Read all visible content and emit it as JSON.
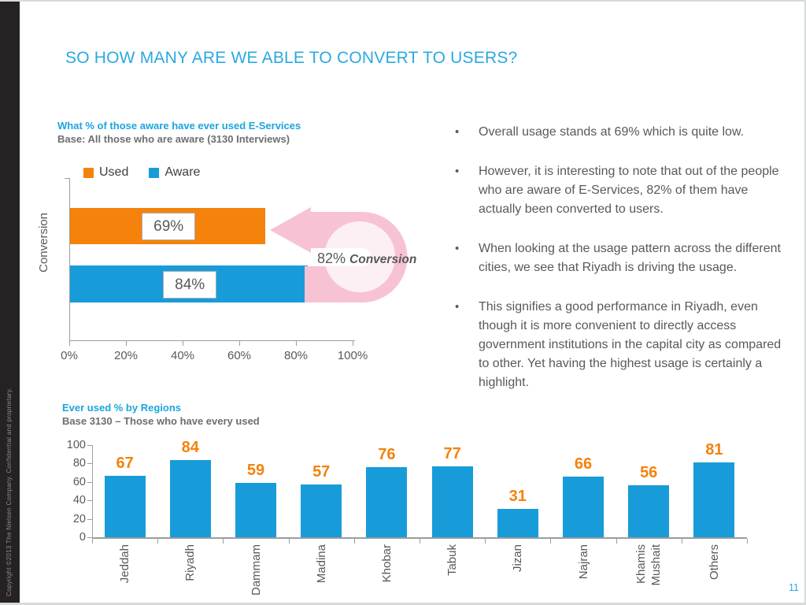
{
  "slide": {
    "title": "SO HOW MANY ARE WE ABLE TO CONVERT TO USERS?",
    "page_number": "11",
    "copyright": "Copyright ©2013 The Nielsen Company. Confidential and proprietary."
  },
  "bullets": [
    "Overall usage stands at 69% which is quite low.",
    "However, it is interesting to note that out of the people who are aware of E-Services, 82% of them have actually been converted to users.",
    "When looking at the usage pattern across the different cities, we see that Riyadh is driving the usage.",
    "This signifies a good performance in Riyadh, even though it is more convenient to directly access government institutions in the capital city as compared to other. Yet having the highest usage is certainly a highlight."
  ],
  "colors": {
    "accent_cyan": "#2aa9e0",
    "bar_orange": "#f5820b",
    "bar_blue": "#189cd9",
    "arrow_pink": "#f7c3d4",
    "text_gray": "#595959"
  },
  "chart_data": [
    {
      "type": "bar",
      "orientation": "horizontal",
      "title": "What % of those aware have ever used E-Services",
      "subtitle": "Base: All those who are aware (3130 Interviews)",
      "axis_label": "Conversion",
      "legend": [
        "Used",
        "Aware"
      ],
      "series": [
        {
          "name": "Used",
          "value": 69,
          "label": "69%",
          "color": "#f5820b"
        },
        {
          "name": "Aware",
          "value": 84,
          "label": "84%",
          "color": "#189cd9"
        }
      ],
      "xlim": [
        0,
        100
      ],
      "x_ticks": [
        "0%",
        "20%",
        "40%",
        "60%",
        "80%",
        "100%"
      ],
      "annotation": {
        "value": "82%",
        "label": "Conversion"
      },
      "arrow_color": "#f7c3d4",
      "grid": false,
      "legend_position": "top"
    },
    {
      "type": "bar",
      "orientation": "vertical",
      "title": "Ever used % by Regions",
      "subtitle": "Base 3130 – Those who have every used",
      "categories": [
        "Jeddah",
        "Riyadh",
        "Dammam",
        "Madina",
        "Khobar",
        "Tabuk",
        "Jizan",
        "Najran",
        "Khamis Mushait",
        "Others"
      ],
      "values": [
        67,
        84,
        59,
        57,
        76,
        77,
        31,
        66,
        56,
        81
      ],
      "ylim": [
        0,
        100
      ],
      "y_ticks": [
        0,
        20,
        40,
        60,
        80,
        100
      ],
      "bar_color": "#189cd9",
      "value_label_color": "#f5820b",
      "grid": false
    }
  ]
}
